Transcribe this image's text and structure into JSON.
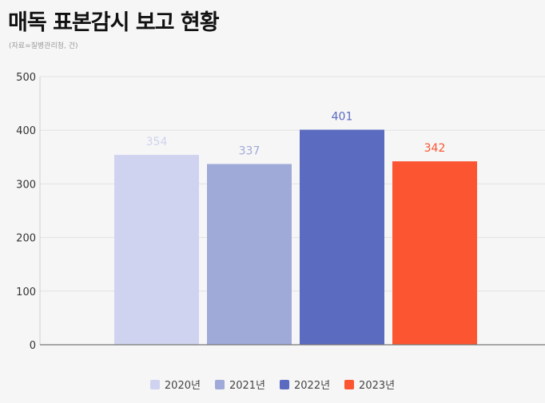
{
  "title": "매독 표본감시 보고 현황",
  "source": "(자료=질병관리청, 건)",
  "chart_data": {
    "type": "bar",
    "categories": [
      "2020년",
      "2021년",
      "2022년",
      "2023년"
    ],
    "values": [
      354,
      337,
      401,
      342
    ],
    "colors": [
      "#cfd3ef",
      "#a0aad9",
      "#5b6bbf",
      "#fb5531"
    ],
    "ylim": [
      0,
      500
    ],
    "yticks": [
      0,
      100,
      200,
      300,
      400,
      500
    ],
    "grid": true,
    "legend_position": "bottom-center",
    "data_labels": true
  }
}
